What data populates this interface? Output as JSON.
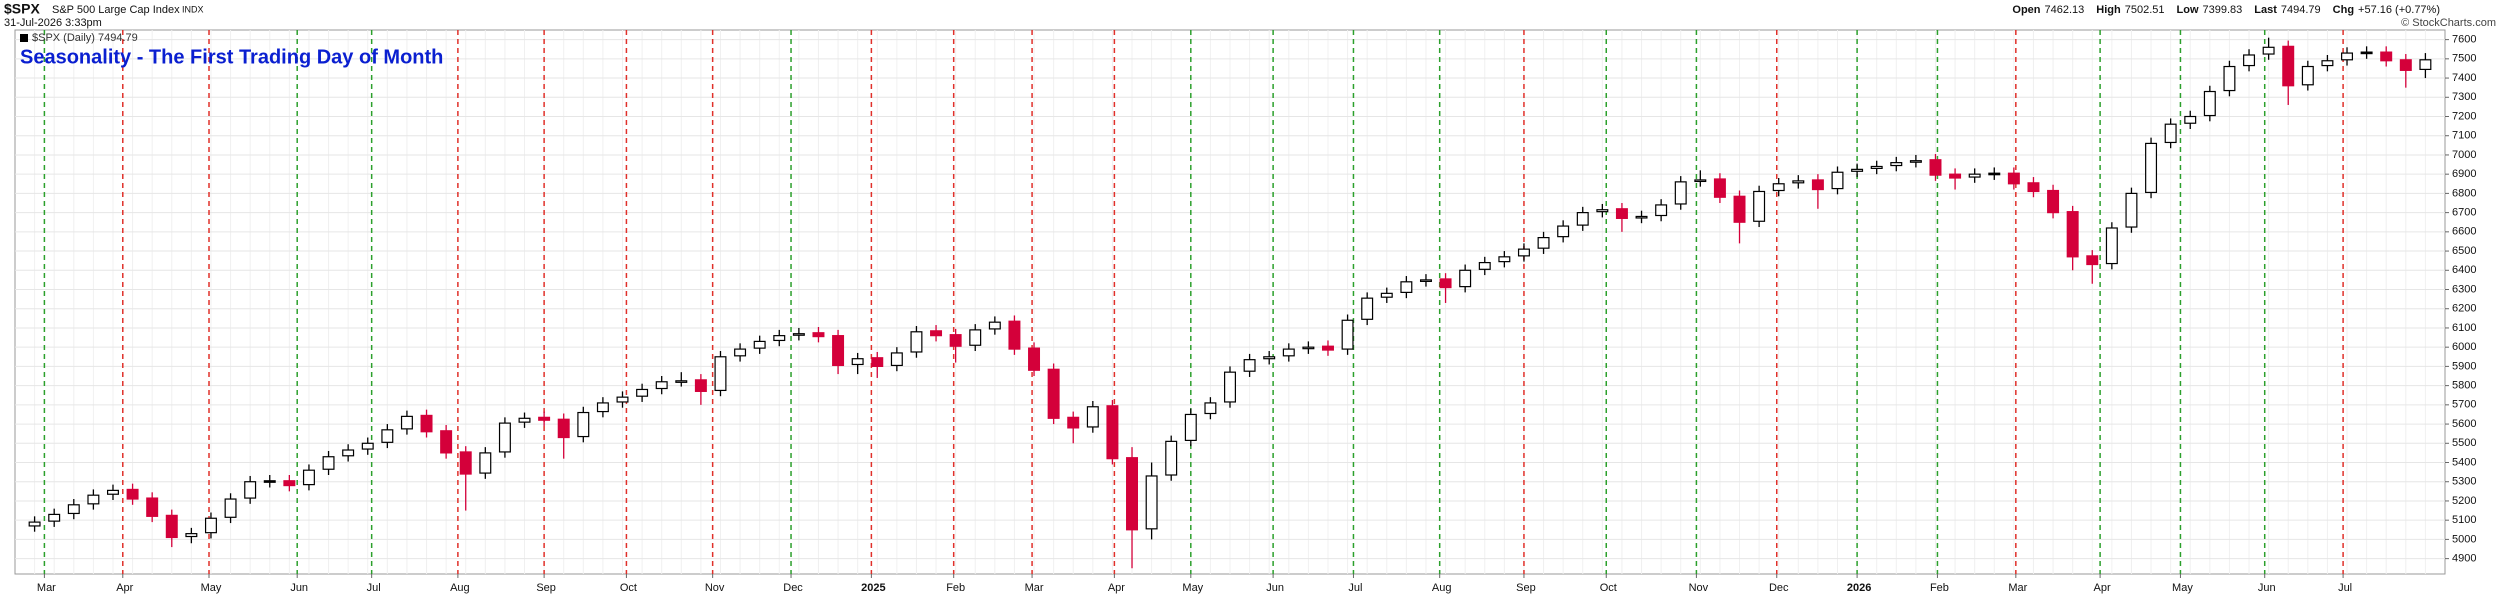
{
  "header": {
    "symbol": "$SPX",
    "name": "S&P 500 Large Cap Index",
    "exchange": "INDX",
    "timestamp": "31-Jul-2026 3:33pm",
    "stats": [
      {
        "label": "Open",
        "value": 7462.13
      },
      {
        "label": "High",
        "value": 7502.51
      },
      {
        "label": "Low",
        "value": 7399.83
      },
      {
        "label": "Last",
        "value": 7494.79
      },
      {
        "label": "Chg",
        "value": "+57.16 (+0.77%)"
      }
    ],
    "credit": "© StockCharts.com"
  },
  "chart_data": {
    "type": "candlestick",
    "title": "Seasonality - The First Trading Day of Month",
    "legend_label": "$SPX (Daily) 7494.79",
    "up_color": "#000000",
    "down_color": "#d4003a",
    "x": [
      0,
      1,
      2,
      3,
      4,
      5,
      6,
      7,
      8,
      9,
      10,
      11,
      12,
      13,
      14,
      15,
      16,
      17,
      18,
      19,
      20,
      21,
      22,
      23,
      24,
      25,
      26,
      27,
      28,
      29,
      30,
      31,
      32,
      33,
      34,
      35,
      36,
      37,
      38,
      39,
      40,
      41,
      42,
      43,
      44,
      45,
      46,
      47,
      48,
      49,
      50,
      51,
      52,
      53,
      54,
      55,
      56,
      57,
      58,
      59,
      60,
      61,
      62,
      63,
      64,
      65,
      66,
      67,
      68,
      69,
      70,
      71,
      72,
      73,
      74,
      75,
      76,
      77,
      78,
      79,
      80,
      81,
      82,
      83,
      84,
      85,
      86,
      87,
      88,
      89,
      90,
      91,
      92,
      93,
      94,
      95,
      96,
      97,
      98,
      99,
      100,
      101,
      102,
      103,
      104,
      105,
      106,
      107,
      108,
      109,
      110,
      111,
      112,
      113,
      114,
      115,
      116,
      117,
      118,
      119,
      120,
      121,
      122
    ],
    "open": [
      5070,
      5095,
      5135,
      5185,
      5235,
      5260,
      5215,
      5125,
      5015,
      5035,
      5115,
      5215,
      5305,
      5305,
      5285,
      5365,
      5435,
      5470,
      5505,
      5575,
      5645,
      5565,
      5455,
      5345,
      5455,
      5610,
      5635,
      5625,
      5535,
      5665,
      5715,
      5745,
      5785,
      5825,
      5830,
      5775,
      5955,
      5995,
      6035,
      6065,
      6075,
      6060,
      5910,
      5945,
      5905,
      5975,
      6085,
      6065,
      6010,
      6095,
      6135,
      5995,
      5885,
      5635,
      5585,
      5695,
      5425,
      5055,
      5335,
      5515,
      5655,
      5715,
      5875,
      5940,
      5955,
      5995,
      6005,
      5990,
      6145,
      6260,
      6285,
      6345,
      6355,
      6315,
      6405,
      6445,
      6475,
      6515,
      6575,
      6635,
      6705,
      6720,
      6675,
      6685,
      6745,
      6865,
      6875,
      6785,
      6655,
      6815,
      6855,
      6870,
      6825,
      6915,
      6930,
      6945,
      6965,
      6975,
      6900,
      6885,
      6905,
      6905,
      6855,
      6815,
      6705,
      6475,
      6435,
      6625,
      6805,
      7065,
      7165,
      7205,
      7335,
      7465,
      7525,
      7565,
      7365,
      7465,
      7495,
      7535,
      7535,
      7495,
      7445
    ],
    "high": [
      5120,
      5160,
      5210,
      5260,
      5285,
      5290,
      5245,
      5155,
      5060,
      5140,
      5240,
      5330,
      5335,
      5335,
      5390,
      5460,
      5495,
      5530,
      5600,
      5670,
      5675,
      5595,
      5485,
      5480,
      5635,
      5660,
      5665,
      5655,
      5690,
      5740,
      5770,
      5810,
      5850,
      5870,
      5860,
      5980,
      6020,
      6060,
      6090,
      6100,
      6105,
      6090,
      5970,
      5975,
      6000,
      6110,
      6115,
      6095,
      6120,
      6160,
      6165,
      6025,
      5915,
      5665,
      5720,
      5725,
      5480,
      5400,
      5540,
      5680,
      5740,
      5900,
      5965,
      5980,
      6020,
      6030,
      6035,
      6170,
      6285,
      6310,
      6370,
      6380,
      6385,
      6430,
      6470,
      6500,
      6540,
      6600,
      6660,
      6730,
      6745,
      6750,
      6710,
      6770,
      6890,
      6920,
      6905,
      6815,
      6840,
      6880,
      6895,
      6900,
      6940,
      6955,
      6970,
      6990,
      7000,
      7005,
      6930,
      6930,
      6935,
      6935,
      6885,
      6845,
      6735,
      6505,
      6650,
      6830,
      7090,
      7190,
      7230,
      7360,
      7490,
      7550,
      7610,
      7595,
      7490,
      7520,
      7560,
      7565,
      7565,
      7525,
      7530
    ],
    "low": [
      5040,
      5065,
      5105,
      5155,
      5205,
      5180,
      5090,
      4960,
      4980,
      5005,
      5085,
      5185,
      5270,
      5250,
      5255,
      5335,
      5405,
      5440,
      5475,
      5545,
      5530,
      5420,
      5150,
      5315,
      5425,
      5580,
      5590,
      5420,
      5505,
      5635,
      5685,
      5715,
      5755,
      5795,
      5700,
      5745,
      5925,
      5965,
      6005,
      6035,
      6025,
      5860,
      5860,
      5840,
      5875,
      5945,
      6030,
      5920,
      5980,
      6065,
      5960,
      5850,
      5600,
      5500,
      5555,
      5390,
      4850,
      5000,
      5305,
      5485,
      5625,
      5685,
      5845,
      5910,
      5925,
      5965,
      5955,
      5960,
      6115,
      6230,
      6255,
      6315,
      6230,
      6285,
      6375,
      6415,
      6445,
      6485,
      6545,
      6605,
      6675,
      6600,
      6645,
      6655,
      6715,
      6835,
      6750,
      6540,
      6625,
      6785,
      6825,
      6720,
      6795,
      6885,
      6900,
      6915,
      6935,
      6865,
      6820,
      6855,
      6870,
      6820,
      6780,
      6670,
      6400,
      6330,
      6405,
      6595,
      6775,
      7035,
      7135,
      7175,
      7305,
      7435,
      7495,
      7260,
      7335,
      7435,
      7465,
      7500,
      7460,
      7350,
      7400
    ],
    "close": [
      5090,
      5130,
      5180,
      5230,
      5255,
      5210,
      5120,
      5010,
      5030,
      5110,
      5210,
      5300,
      5300,
      5280,
      5360,
      5430,
      5465,
      5500,
      5570,
      5640,
      5560,
      5450,
      5340,
      5450,
      5605,
      5630,
      5620,
      5530,
      5660,
      5710,
      5740,
      5780,
      5820,
      5825,
      5770,
      5950,
      5990,
      6030,
      6060,
      6070,
      6055,
      5905,
      5940,
      5900,
      5970,
      6080,
      6060,
      6005,
      6090,
      6130,
      5990,
      5880,
      5630,
      5580,
      5690,
      5420,
      5050,
      5330,
      5510,
      5650,
      5710,
      5870,
      5935,
      5950,
      5990,
      6000,
      5985,
      6140,
      6255,
      6280,
      6340,
      6350,
      6310,
      6400,
      6440,
      6470,
      6510,
      6570,
      6630,
      6700,
      6715,
      6670,
      6680,
      6740,
      6860,
      6870,
      6780,
      6650,
      6810,
      6850,
      6865,
      6820,
      6910,
      6925,
      6940,
      6960,
      6970,
      6895,
      6880,
      6900,
      6900,
      6850,
      6810,
      6700,
      6470,
      6430,
      6620,
      6800,
      7060,
      7160,
      7200,
      7330,
      7460,
      7520,
      7560,
      7360,
      7460,
      7490,
      7530,
      7530,
      7490,
      7440,
      7495
    ],
    "xlim": [
      -1,
      123
    ],
    "ylim": [
      4820,
      7650
    ],
    "yticks": [
      4900,
      5000,
      5100,
      5200,
      5300,
      5400,
      5500,
      5600,
      5700,
      5800,
      5900,
      6000,
      6100,
      6200,
      6300,
      6400,
      6500,
      6600,
      6700,
      6800,
      6900,
      7000,
      7100,
      7200,
      7300,
      7400,
      7500,
      7600
    ],
    "grid": true,
    "month_lines": [
      {
        "x": 0.5,
        "label": "Mar",
        "color": "#2ca02c"
      },
      {
        "x": 4.5,
        "label": "Apr",
        "color": "#e0302a"
      },
      {
        "x": 8.9,
        "label": "May",
        "color": "#e0302a"
      },
      {
        "x": 13.4,
        "label": "Jun",
        "color": "#2ca02c"
      },
      {
        "x": 17.2,
        "label": "Jul",
        "color": "#2ca02c"
      },
      {
        "x": 21.6,
        "label": "Aug",
        "color": "#e0302a"
      },
      {
        "x": 26,
        "label": "Sep",
        "color": "#e0302a"
      },
      {
        "x": 30.2,
        "label": "Oct",
        "color": "#e0302a"
      },
      {
        "x": 34.6,
        "label": "Nov",
        "color": "#e0302a"
      },
      {
        "x": 38.6,
        "label": "Dec",
        "color": "#2ca02c"
      },
      {
        "x": 42.7,
        "label": "2025",
        "color": "#e0302a"
      },
      {
        "x": 46.9,
        "label": "Feb",
        "color": "#e0302a"
      },
      {
        "x": 50.9,
        "label": "Mar",
        "color": "#e0302a"
      },
      {
        "x": 55.1,
        "label": "Apr",
        "color": "#e0302a"
      },
      {
        "x": 59,
        "label": "May",
        "color": "#2ca02c"
      },
      {
        "x": 63.2,
        "label": "Jun",
        "color": "#2ca02c"
      },
      {
        "x": 67.3,
        "label": "Jul",
        "color": "#2ca02c"
      },
      {
        "x": 71.7,
        "label": "Aug",
        "color": "#2ca02c"
      },
      {
        "x": 76,
        "label": "Sep",
        "color": "#e0302a"
      },
      {
        "x": 80.2,
        "label": "Oct",
        "color": "#2ca02c"
      },
      {
        "x": 84.8,
        "label": "Nov",
        "color": "#2ca02c"
      },
      {
        "x": 88.9,
        "label": "Dec",
        "color": "#e0302a"
      },
      {
        "x": 93,
        "label": "2026",
        "color": "#2ca02c"
      },
      {
        "x": 97.1,
        "label": "Feb",
        "color": "#2ca02c"
      },
      {
        "x": 101.1,
        "label": "Mar",
        "color": "#e0302a"
      },
      {
        "x": 105.4,
        "label": "Apr",
        "color": "#2ca02c"
      },
      {
        "x": 109.5,
        "label": "May",
        "color": "#2ca02c"
      },
      {
        "x": 113.8,
        "label": "Jun",
        "color": "#2ca02c"
      },
      {
        "x": 117.8,
        "label": "Jul",
        "color": "#e0302a"
      }
    ]
  }
}
